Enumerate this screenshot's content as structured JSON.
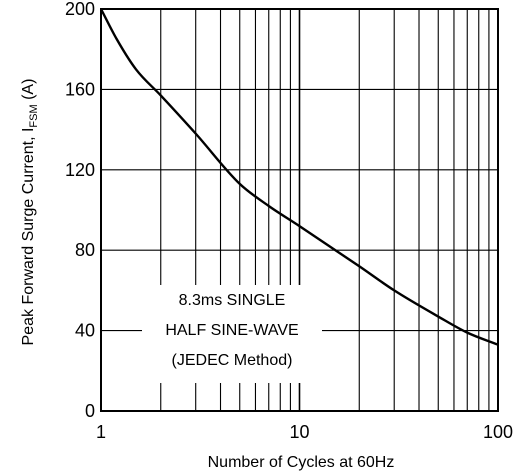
{
  "chart_data": {
    "type": "line",
    "xlabel": "Number of Cycles at 60Hz",
    "ylabel_main": "Peak Forward Surge Current, I",
    "ylabel_sub": "FSM",
    "ylabel_unit": " (A)",
    "xscale": "log",
    "xlim": [
      1,
      100
    ],
    "ylim": [
      0,
      200
    ],
    "x_ticks": [
      "1",
      "10",
      "100"
    ],
    "y_ticks": [
      "0",
      "40",
      "80",
      "120",
      "160",
      "200"
    ],
    "grid": true,
    "annotation": [
      "8.3ms SINGLE",
      "HALF SINE-WAVE",
      "(JEDEC Method)"
    ],
    "series": [
      {
        "x": [
          1,
          1.2,
          1.5,
          2,
          3,
          5,
          7,
          10,
          20,
          30,
          50,
          70,
          100
        ],
        "y": [
          200,
          185,
          170,
          157,
          138,
          113,
          102,
          92,
          72,
          60,
          47,
          39,
          33
        ]
      }
    ]
  }
}
